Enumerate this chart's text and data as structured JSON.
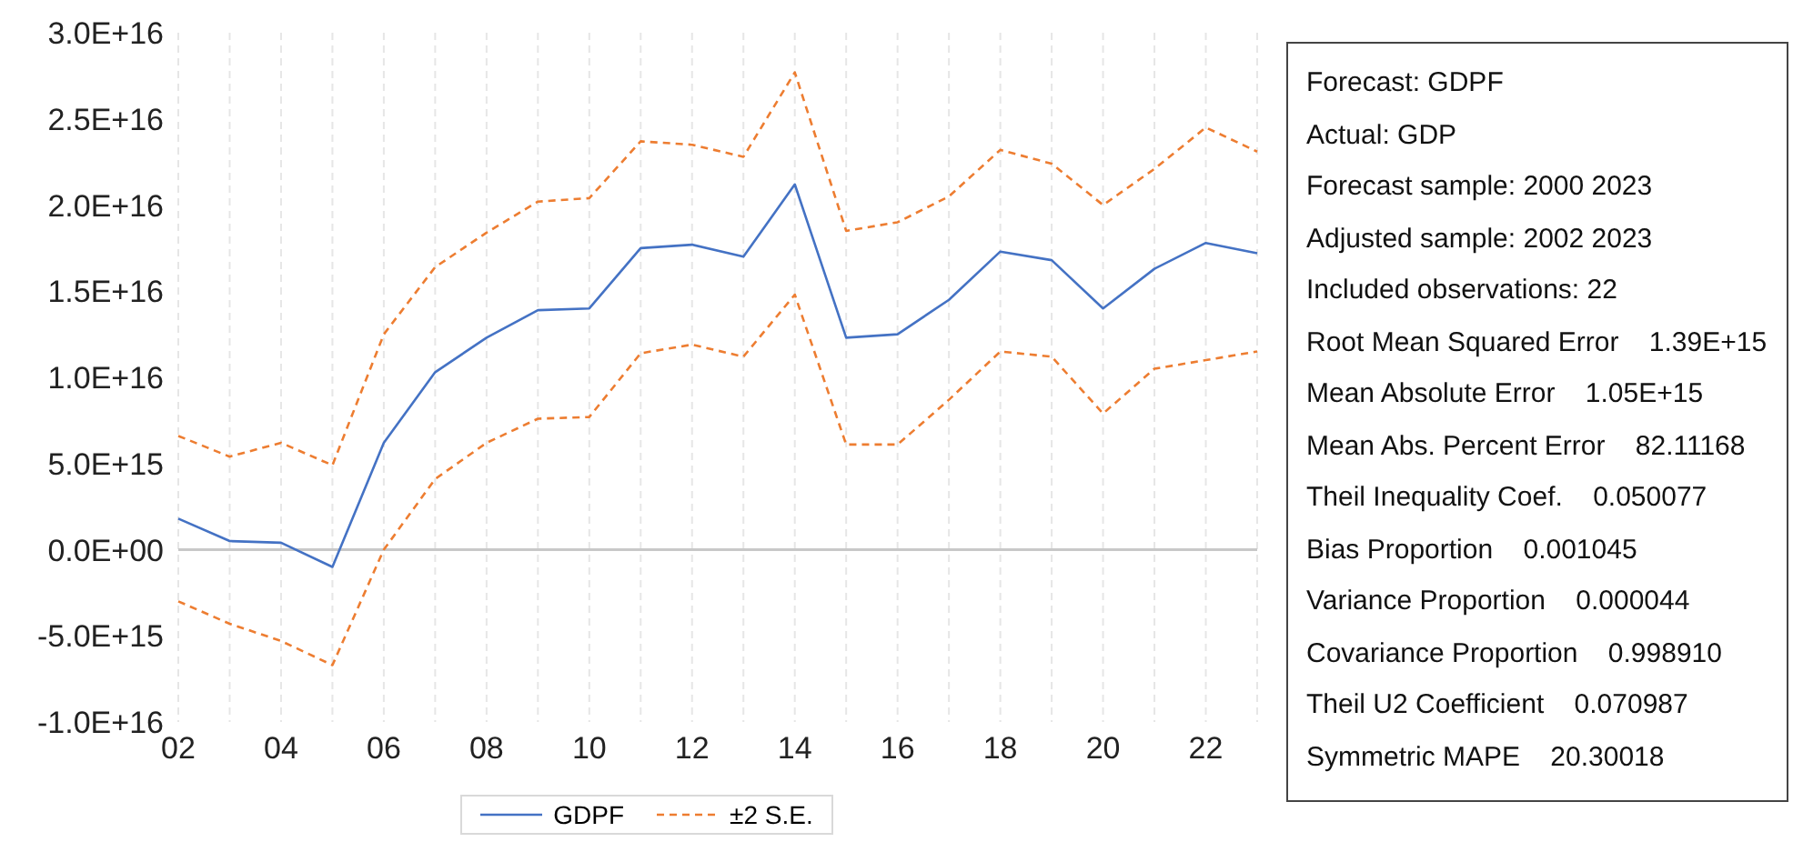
{
  "chart_data": [
    {
      "type": "line",
      "categories": [
        "02",
        null,
        "04",
        null,
        "06",
        null,
        "08",
        null,
        "10",
        null,
        "12",
        null,
        "14",
        null,
        "16",
        null,
        "18",
        null,
        "20",
        null,
        "22",
        null
      ],
      "series": [
        {
          "name": "GDPF",
          "color": "#4472c4",
          "line_style": "solid",
          "values": [
            1800000000000000.0,
            500000000000000.0,
            400000000000000.0,
            -1000000000000000.0,
            6200000000000000.0,
            1.03e+16,
            1.23e+16,
            1.39e+16,
            1.4e+16,
            1.75e+16,
            1.77e+16,
            1.7e+16,
            2.12e+16,
            1.23e+16,
            1.25e+16,
            1.45e+16,
            1.73e+16,
            1.68e+16,
            1.4e+16,
            1.63e+16,
            1.78e+16,
            1.72e+16
          ]
        },
        {
          "name": "±2 S.E.",
          "color": "#ed7d31",
          "line_style": "dashed",
          "values": [
            6600000000000000.0,
            5400000000000000.0,
            6200000000000000.0,
            4900000000000000.0,
            1.25e+16,
            1.64e+16,
            1.84e+16,
            2.02e+16,
            2.04e+16,
            2.37e+16,
            2.35e+16,
            2.28e+16,
            2.77e+16,
            1.85e+16,
            1.9e+16,
            2.05e+16,
            2.32e+16,
            2.24e+16,
            2e+16,
            2.21e+16,
            2.45e+16,
            2.31e+16
          ]
        },
        {
          "color": "#ed7d31",
          "line_style": "dashed",
          "values": [
            -3000000000000000.0,
            -4300000000000000.0,
            -5300000000000000.0,
            -6700000000000000.0,
            0.0,
            4100000000000000.0,
            6200000000000000.0,
            7600000000000000.0,
            7700000000000000.0,
            1.14e+16,
            1.19e+16,
            1.12e+16,
            1.48e+16,
            6100000000000000.0,
            6100000000000000.0,
            8700000000000000.0,
            1.15e+16,
            1.12e+16,
            7900000000000000.0,
            1.05e+16,
            1.1e+16,
            1.15e+16
          ]
        }
      ],
      "ylim": [
        -1e+16,
        3e+16
      ],
      "yticks": [
        {
          "value": -1e+16,
          "label": "-1.0E+16"
        },
        {
          "value": -5000000000000000.0,
          "label": "-5.0E+15"
        },
        {
          "value": 0,
          "label": "0.0E+00"
        },
        {
          "value": 5000000000000000.0,
          "label": "5.0E+15"
        },
        {
          "value": 1e+16,
          "label": "1.0E+16"
        },
        {
          "value": 1.5e+16,
          "label": "1.5E+16"
        },
        {
          "value": 2e+16,
          "label": "2.0E+16"
        },
        {
          "value": 2.5e+16,
          "label": "2.5E+16"
        },
        {
          "value": 3e+16,
          "label": "3.0E+16"
        }
      ],
      "grid": "x",
      "marker": "none",
      "legend": "bottom"
    },
    {
      "type": "other",
      "annotations": [
        "Forecast: GDPF",
        "Actual: GDP",
        "Forecast sample: 2000 2023",
        "Adjusted sample: 2002 2023",
        "Included observations: 22",
        "Root Mean Squared Error    1.39E+15",
        "Mean Absolute Error    1.05E+15",
        "Mean Abs. Percent Error    82.11168",
        "Theil Inequality Coef.    0.050077",
        "Bias Proportion    0.001045",
        "Variance Proportion    0.000044",
        "Covariance Proportion    0.998910",
        "Theil U2 Coefficient    0.070987",
        "Symmetric MAPE    20.30018"
      ]
    }
  ]
}
